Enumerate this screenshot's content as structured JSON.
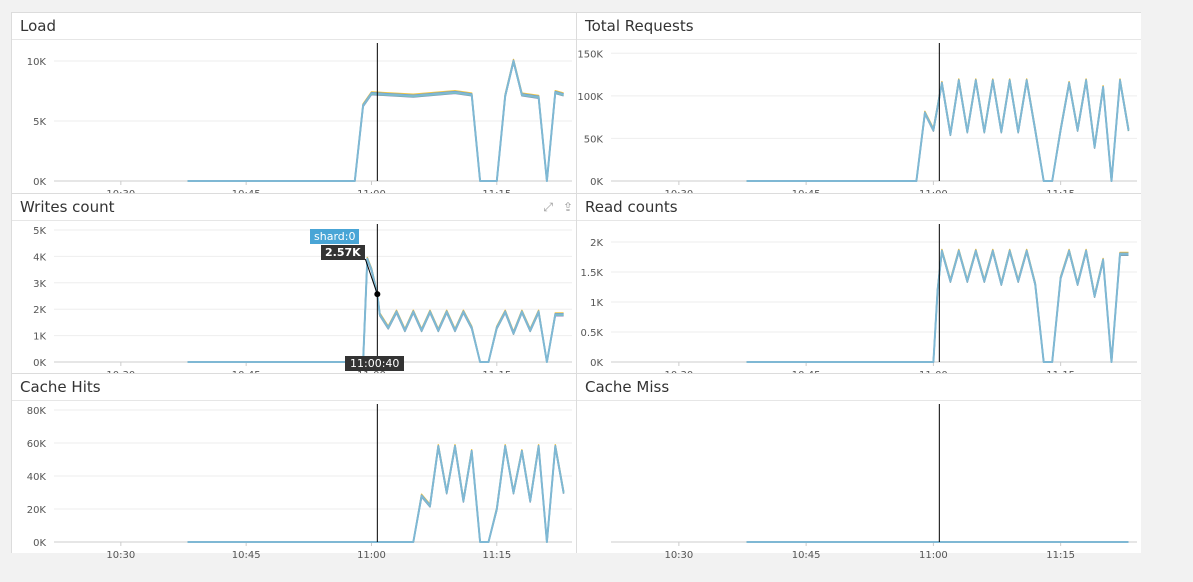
{
  "colors": {
    "series": [
      "#7fb8d4",
      "#f0c64a",
      "#8a80c8",
      "#4f8fd6",
      "#77c9a8"
    ],
    "cursor": "#000000",
    "grid": "#eeeeee",
    "axis": "#cccccc",
    "tooltip_label_bg": "#49a5d6",
    "tooltip_value_bg": "#333333"
  },
  "panels": [
    {
      "id": "load",
      "title": "Load"
    },
    {
      "id": "total-requests",
      "title": "Total Requests"
    },
    {
      "id": "writes-count",
      "title": "Writes count",
      "actions": [
        "expand-icon",
        "share-icon"
      ]
    },
    {
      "id": "read-counts",
      "title": "Read counts"
    },
    {
      "id": "cache-hits",
      "title": "Cache Hits"
    },
    {
      "id": "cache-miss",
      "title": "Cache Miss"
    }
  ],
  "hover": {
    "series_label": "shard:0",
    "value_label": "2.57K",
    "time_label": "11:00:40"
  },
  "chart_data": [
    {
      "type": "line",
      "title": "Load",
      "x_ticks": [
        "10:30",
        "10:45",
        "11:00",
        "11:15"
      ],
      "y_ticks": [
        "0K",
        "5K",
        "10K"
      ],
      "ylim": [
        0,
        11000
      ],
      "series_hint": "multiple overlapping series, approximately: 0 until ~10:58, jump to ~6.5K then ~7.3K plateau until ~11:12, drop to 0 then spikes ~7K to ~10K near 11:17",
      "x": [
        "10:38",
        "10:58",
        "10:59",
        "11:00",
        "11:05",
        "11:10",
        "11:12",
        "11:13",
        "11:15",
        "11:16",
        "11:17",
        "11:18",
        "11:20",
        "11:21",
        "11:22",
        "11:23"
      ],
      "values": [
        0,
        0,
        6300,
        7300,
        7100,
        7400,
        7200,
        0,
        0,
        7100,
        10000,
        7200,
        7000,
        0,
        7400,
        7200
      ]
    },
    {
      "type": "line",
      "title": "Total Requests",
      "x_ticks": [
        "10:30",
        "10:45",
        "11:00",
        "11:15"
      ],
      "y_ticks": [
        "0K",
        "50K",
        "100K",
        "150K"
      ],
      "ylim": [
        0,
        155000
      ],
      "x": [
        "10:38",
        "10:58",
        "10:59",
        "11:00",
        "11:01",
        "11:02",
        "11:03",
        "11:04",
        "11:05",
        "11:06",
        "11:07",
        "11:08",
        "11:09",
        "11:10",
        "11:11",
        "11:12",
        "11:13",
        "11:14",
        "11:15",
        "11:16",
        "11:17",
        "11:18",
        "11:19",
        "11:20",
        "11:21",
        "11:22",
        "11:23"
      ],
      "values": [
        0,
        0,
        80000,
        60000,
        115000,
        55000,
        118000,
        58000,
        118000,
        58000,
        118000,
        58000,
        118000,
        58000,
        118000,
        60000,
        0,
        0,
        60000,
        115000,
        60000,
        118000,
        40000,
        110000,
        0,
        118000,
        60000
      ]
    },
    {
      "type": "line",
      "title": "Writes count",
      "x_ticks": [
        "10:30",
        "10:45",
        "11:00",
        "11:15"
      ],
      "y_ticks": [
        "0K",
        "1K",
        "2K",
        "3K",
        "4K",
        "5K"
      ],
      "ylim": [
        0,
        5000
      ],
      "x": [
        "10:38",
        "10:59",
        "10:59.5",
        "11:00",
        "11:00.7",
        "11:01",
        "11:02",
        "11:03",
        "11:04",
        "11:05",
        "11:06",
        "11:07",
        "11:08",
        "11:09",
        "11:10",
        "11:11",
        "11:12",
        "11:13",
        "11:14",
        "11:15",
        "11:16",
        "11:17",
        "11:18",
        "11:19",
        "11:20",
        "11:21",
        "11:22",
        "11:23"
      ],
      "values": [
        0,
        0,
        3900,
        3500,
        2570,
        1800,
        1300,
        1900,
        1200,
        1900,
        1200,
        1900,
        1200,
        1900,
        1200,
        1900,
        1300,
        0,
        0,
        1300,
        1900,
        1100,
        1900,
        1200,
        1900,
        0,
        1800,
        1800
      ]
    },
    {
      "type": "line",
      "title": "Read counts",
      "x_ticks": [
        "10:30",
        "10:45",
        "11:00",
        "11:15"
      ],
      "y_ticks": [
        "0K",
        "0.5K",
        "1K",
        "1.5K",
        "2K"
      ],
      "ylim": [
        0,
        2200
      ],
      "x": [
        "10:38",
        "11:00",
        "11:00.5",
        "11:01",
        "11:02",
        "11:03",
        "11:04",
        "11:05",
        "11:06",
        "11:07",
        "11:08",
        "11:09",
        "11:10",
        "11:11",
        "11:12",
        "11:13",
        "11:14",
        "11:15",
        "11:16",
        "11:17",
        "11:18",
        "11:19",
        "11:20",
        "11:21",
        "11:22",
        "11:23"
      ],
      "values": [
        0,
        0,
        1200,
        1850,
        1350,
        1850,
        1350,
        1850,
        1350,
        1850,
        1300,
        1850,
        1350,
        1850,
        1300,
        0,
        0,
        1400,
        1850,
        1300,
        1850,
        1100,
        1700,
        0,
        1800,
        1800
      ]
    },
    {
      "type": "line",
      "title": "Cache Hits",
      "x_ticks": [
        "10:30",
        "10:45",
        "11:00",
        "11:15"
      ],
      "y_ticks": [
        "0K",
        "20K",
        "40K",
        "60K",
        "80K"
      ],
      "ylim": [
        0,
        80000
      ],
      "x": [
        "10:38",
        "11:05",
        "11:06",
        "11:07",
        "11:08",
        "11:09",
        "11:10",
        "11:11",
        "11:12",
        "11:13",
        "11:14",
        "11:15",
        "11:16",
        "11:17",
        "11:18",
        "11:19",
        "11:20",
        "11:21",
        "11:22",
        "11:23"
      ],
      "values": [
        0,
        0,
        28000,
        22000,
        58000,
        30000,
        58000,
        25000,
        55000,
        0,
        0,
        20000,
        58000,
        30000,
        55000,
        25000,
        58000,
        0,
        58000,
        30000
      ]
    },
    {
      "type": "line",
      "title": "Cache Miss",
      "x_ticks": [
        "10:30",
        "10:45",
        "11:00",
        "11:15"
      ],
      "y_ticks": [],
      "x": [
        "10:38",
        "11:23"
      ],
      "values": [
        0,
        0
      ]
    }
  ]
}
